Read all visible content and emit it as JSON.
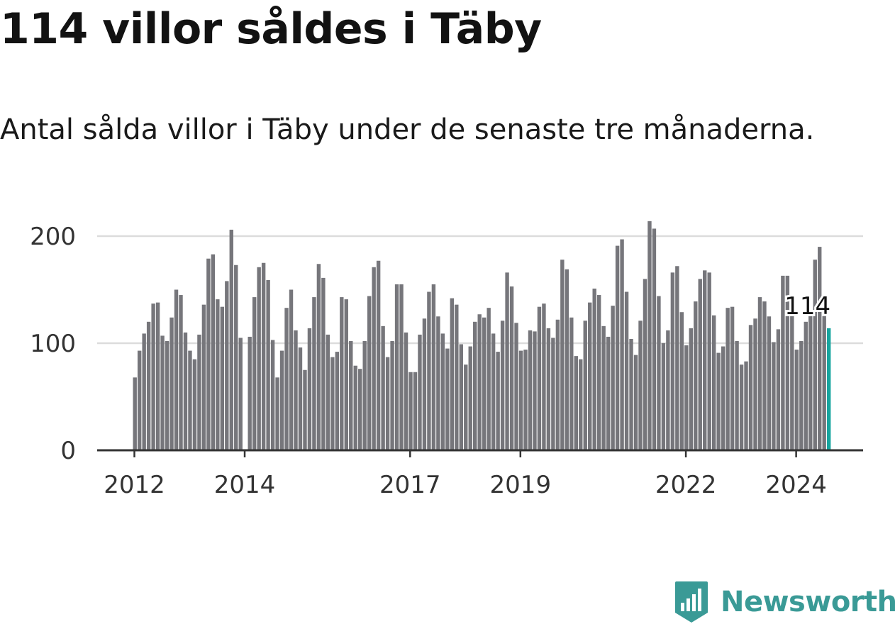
{
  "title": "114 villor såldes i Täby",
  "subtitle": "Antal sålda villor i Täby under de senaste tre månaderna.",
  "brand": "Newsworthy",
  "colors": {
    "bar": "#76767b",
    "highlight": "#17a59f",
    "grid": "#dcdcdc",
    "axis": "#333333",
    "brand": "#3a9a96"
  },
  "chart_data": {
    "type": "bar",
    "title": "114 villor såldes i Täby",
    "xlabel": "",
    "ylabel": "",
    "ylim": [
      0,
      200
    ],
    "yticks": [
      0,
      100,
      200
    ],
    "xticks": [
      "2012",
      "2014",
      "2017",
      "2019",
      "2022",
      "2024"
    ],
    "start_month": "2012-01",
    "values": [
      68,
      93,
      109,
      120,
      137,
      138,
      107,
      102,
      124,
      150,
      145,
      110,
      93,
      85,
      108,
      136,
      179,
      183,
      141,
      134,
      158,
      206,
      173,
      105,
      0,
      106,
      143,
      171,
      175,
      159,
      103,
      68,
      93,
      133,
      150,
      112,
      96,
      75,
      114,
      143,
      174,
      161,
      108,
      87,
      92,
      143,
      141,
      102,
      79,
      76,
      102,
      144,
      171,
      177,
      116,
      87,
      102,
      155,
      155,
      110,
      73,
      73,
      108,
      123,
      148,
      155,
      125,
      109,
      95,
      142,
      136,
      99,
      80,
      97,
      120,
      127,
      124,
      133,
      109,
      92,
      121,
      166,
      153,
      119,
      93,
      94,
      112,
      111,
      134,
      137,
      114,
      105,
      122,
      178,
      169,
      124,
      88,
      85,
      121,
      138,
      151,
      145,
      116,
      106,
      135,
      191,
      197,
      148,
      104,
      89,
      121,
      160,
      214,
      207,
      144,
      100,
      112,
      166,
      172,
      129,
      98,
      114,
      139,
      160,
      168,
      166,
      126,
      91,
      97,
      133,
      134,
      102,
      80,
      83,
      117,
      123,
      143,
      139,
      125,
      101,
      113,
      163,
      163,
      127,
      94,
      102,
      120,
      126,
      178,
      190,
      126,
      114
    ],
    "highlight": {
      "index": 151,
      "value": 114,
      "label": "114"
    }
  }
}
